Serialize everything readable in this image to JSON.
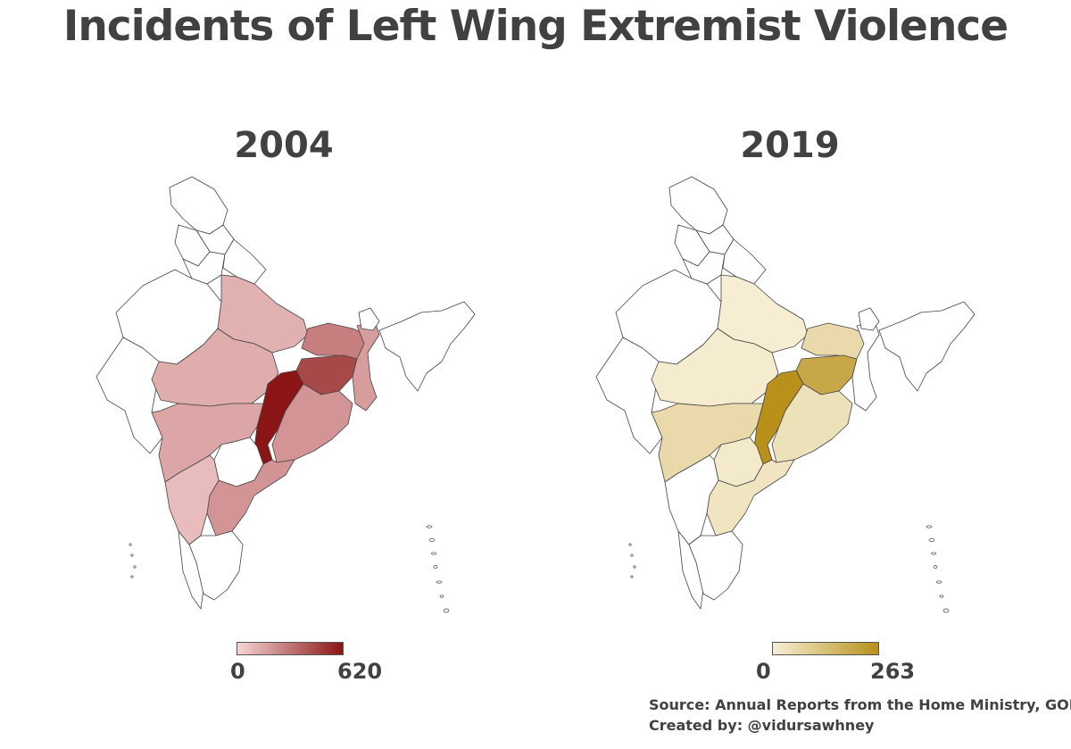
{
  "title": "Incidents of Left Wing Extremist Violence",
  "panels": [
    {
      "year": "2004",
      "legend_min": "0",
      "legend_max": "620",
      "color_low": "#f6d5d5",
      "color_high": "#8b1414",
      "states": {
        "chhattisgarh": 620,
        "jharkhand": 450,
        "bihar": 280,
        "west_bengal": 180,
        "andhra_pradesh": 210,
        "orissa": 210,
        "maharashtra": 150,
        "madhya_pradesh": 130,
        "uttar_pradesh": 120,
        "karnataka": 80
      }
    },
    {
      "year": "2019",
      "legend_min": "0",
      "legend_max": "263",
      "color_low": "#f7efd6",
      "color_high": "#b8901a",
      "states": {
        "chhattisgarh": 263,
        "jharkhand": 200,
        "bihar": 60,
        "maharashtra": 60,
        "orissa": 40,
        "andhra_pradesh": 30,
        "telangana": 15,
        "madhya_pradesh": 10,
        "uttar_pradesh": 5
      }
    }
  ],
  "source": {
    "line1": "Source: Annual Reports from the Home Ministry, GOI",
    "line2": "Created by: @vidursawhney"
  }
}
